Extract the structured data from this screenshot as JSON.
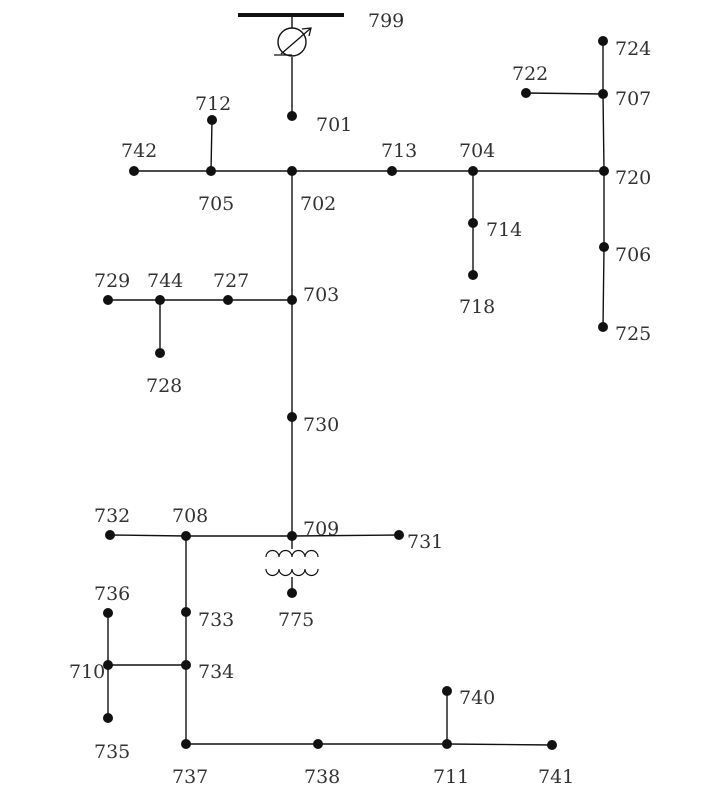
{
  "diagram": {
    "colors": {
      "line": "#111111",
      "node": "#111111",
      "text": "#333333"
    },
    "source_bus": "799",
    "nodes": [
      {
        "id": "799"
      },
      {
        "id": "701"
      },
      {
        "id": "702"
      },
      {
        "id": "705"
      },
      {
        "id": "712"
      },
      {
        "id": "742"
      },
      {
        "id": "713"
      },
      {
        "id": "704"
      },
      {
        "id": "714"
      },
      {
        "id": "718"
      },
      {
        "id": "720"
      },
      {
        "id": "707"
      },
      {
        "id": "722"
      },
      {
        "id": "724"
      },
      {
        "id": "706"
      },
      {
        "id": "725"
      },
      {
        "id": "703"
      },
      {
        "id": "727"
      },
      {
        "id": "744"
      },
      {
        "id": "729"
      },
      {
        "id": "728"
      },
      {
        "id": "730"
      },
      {
        "id": "709"
      },
      {
        "id": "731"
      },
      {
        "id": "775"
      },
      {
        "id": "708"
      },
      {
        "id": "732"
      },
      {
        "id": "733"
      },
      {
        "id": "734"
      },
      {
        "id": "710"
      },
      {
        "id": "736"
      },
      {
        "id": "735"
      },
      {
        "id": "737"
      },
      {
        "id": "738"
      },
      {
        "id": "711"
      },
      {
        "id": "740"
      },
      {
        "id": "741"
      }
    ],
    "edges": [
      [
        "702",
        "705"
      ],
      [
        "705",
        "742"
      ],
      [
        "705",
        "712"
      ],
      [
        "702",
        "713"
      ],
      [
        "713",
        "704"
      ],
      [
        "704",
        "720"
      ],
      [
        "704",
        "714"
      ],
      [
        "714",
        "718"
      ],
      [
        "720",
        "707"
      ],
      [
        "707",
        "724"
      ],
      [
        "707",
        "722"
      ],
      [
        "720",
        "706"
      ],
      [
        "706",
        "725"
      ],
      [
        "702",
        "703"
      ],
      [
        "703",
        "727"
      ],
      [
        "727",
        "744"
      ],
      [
        "744",
        "729"
      ],
      [
        "744",
        "728"
      ],
      [
        "703",
        "730"
      ],
      [
        "730",
        "709"
      ],
      [
        "709",
        "731"
      ],
      [
        "709",
        "708"
      ],
      [
        "708",
        "732"
      ],
      [
        "708",
        "733"
      ],
      [
        "733",
        "734"
      ],
      [
        "734",
        "710"
      ],
      [
        "710",
        "736"
      ],
      [
        "710",
        "735"
      ],
      [
        "734",
        "737"
      ],
      [
        "737",
        "738"
      ],
      [
        "738",
        "711"
      ],
      [
        "711",
        "741"
      ],
      [
        "711",
        "740"
      ]
    ],
    "devices": [
      {
        "type": "regulator",
        "name": "voltage-regulator",
        "between": [
          "799",
          "701"
        ]
      },
      {
        "type": "transformer",
        "name": "transformer-709-775",
        "between": [
          "709",
          "775"
        ]
      }
    ]
  }
}
